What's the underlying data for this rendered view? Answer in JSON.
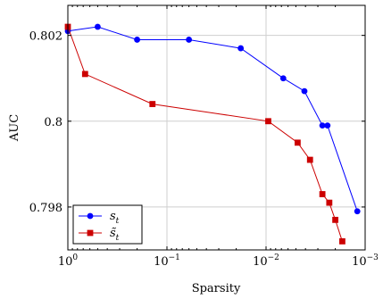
{
  "chart_data": {
    "type": "line",
    "title": "",
    "xlabel": "Sparsity",
    "ylabel": "AUC",
    "x_scale": "log",
    "x_reversed": true,
    "xlim": [
      1,
      0.001
    ],
    "ylim": [
      0.797,
      0.8027
    ],
    "x_ticks": [
      1,
      0.1,
      0.01,
      0.001
    ],
    "x_tick_labels": [
      {
        "base": "10",
        "exp": "0"
      },
      {
        "base": "10",
        "exp": "−1"
      },
      {
        "base": "10",
        "exp": "−2"
      },
      {
        "base": "10",
        "exp": "−3"
      }
    ],
    "y_ticks": [
      0.798,
      0.8,
      0.802
    ],
    "y_tick_labels": [
      "0.798",
      "0.8",
      "0.802"
    ],
    "grid": true,
    "legend_position": "bottom-left",
    "series": [
      {
        "name": "s_t",
        "color": "#0000ff",
        "marker": "circle",
        "points": [
          {
            "x": 1.0,
            "y": 0.8021
          },
          {
            "x": 0.5,
            "y": 0.8022
          },
          {
            "x": 0.2,
            "y": 0.8019
          },
          {
            "x": 0.06,
            "y": 0.8019
          },
          {
            "x": 0.018,
            "y": 0.8017
          },
          {
            "x": 0.0067,
            "y": 0.801
          },
          {
            "x": 0.0041,
            "y": 0.8007
          },
          {
            "x": 0.0027,
            "y": 0.7999
          },
          {
            "x": 0.0024,
            "y": 0.7999
          },
          {
            "x": 0.0012,
            "y": 0.7979
          }
        ]
      },
      {
        "name": "s̃_t",
        "color": "#cc0000",
        "marker": "square",
        "points": [
          {
            "x": 1.0,
            "y": 0.8022
          },
          {
            "x": 0.67,
            "y": 0.8011
          },
          {
            "x": 0.14,
            "y": 0.8004
          },
          {
            "x": 0.0095,
            "y": 0.8
          },
          {
            "x": 0.0048,
            "y": 0.7995
          },
          {
            "x": 0.0036,
            "y": 0.7991
          },
          {
            "x": 0.0027,
            "y": 0.7983
          },
          {
            "x": 0.0023,
            "y": 0.7981
          },
          {
            "x": 0.002,
            "y": 0.7977
          },
          {
            "x": 0.0017,
            "y": 0.7972
          }
        ]
      }
    ],
    "legend": [
      {
        "label_base": "s",
        "label_sub": "t"
      },
      {
        "label_base": "s̃",
        "label_sub": "t"
      }
    ]
  }
}
